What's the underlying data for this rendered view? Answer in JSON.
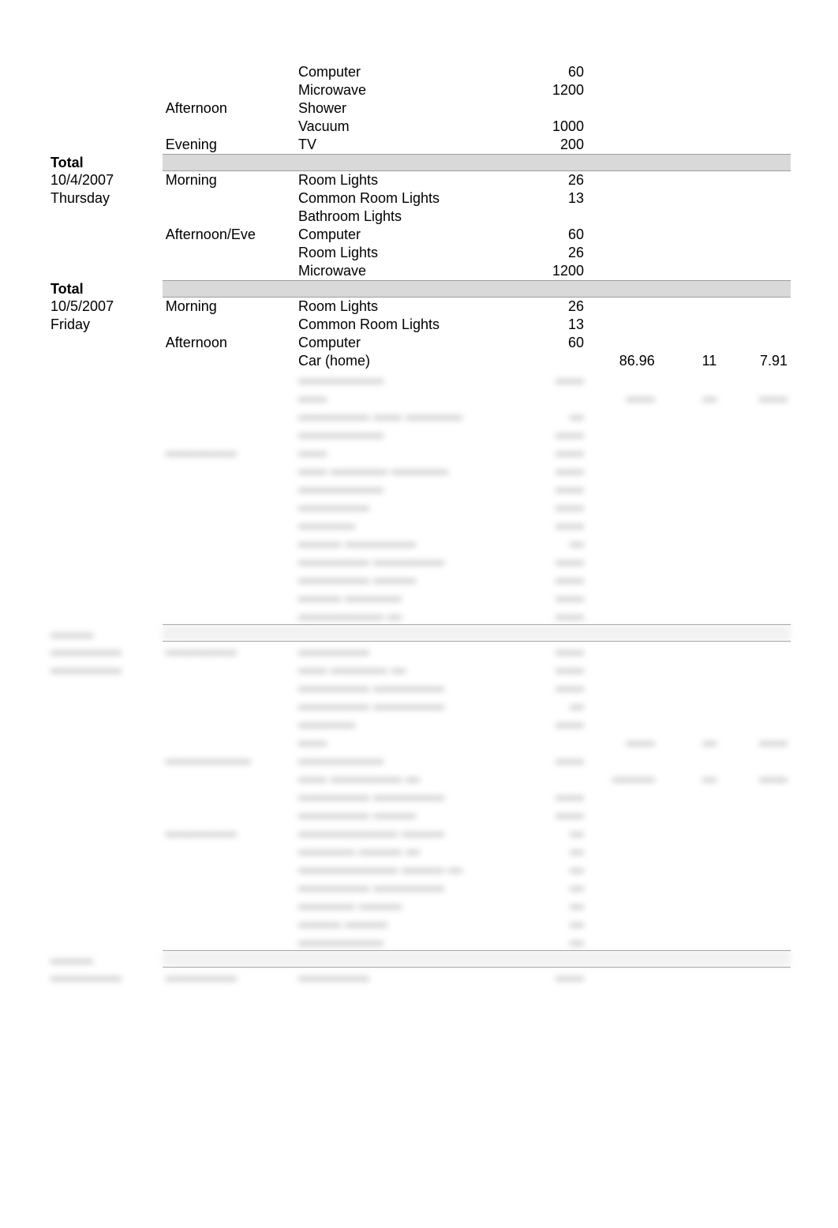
{
  "columns": [
    "date",
    "period",
    "item",
    "value",
    "colA",
    "colB",
    "colC"
  ],
  "column_align": [
    "left",
    "left",
    "left",
    "right",
    "right",
    "right",
    "right"
  ],
  "font_size_pt": 14,
  "text_color": "#000000",
  "background_color": "#ffffff",
  "separator_fill": "#d9d9d9",
  "separator_border": "#9e9e9e",
  "rows": [
    {
      "date": "",
      "period": "",
      "item": "Computer",
      "value": "60",
      "a": "",
      "b": "",
      "c": ""
    },
    {
      "date": "",
      "period": "",
      "item": "Microwave",
      "value": "1200",
      "a": "",
      "b": "",
      "c": ""
    },
    {
      "date": "",
      "period": "Afternoon",
      "item": "Shower",
      "value": "",
      "a": "",
      "b": "",
      "c": ""
    },
    {
      "date": "",
      "period": "",
      "item": "Vacuum",
      "value": "1000",
      "a": "",
      "b": "",
      "c": ""
    },
    {
      "date": "",
      "period": "Evening",
      "item": "TV",
      "value": "200",
      "a": "",
      "b": "",
      "c": ""
    },
    {
      "type": "total",
      "label": "Total"
    },
    {
      "date": "10/4/2007",
      "period": "Morning",
      "item": "Room Lights",
      "value": "26",
      "a": "",
      "b": "",
      "c": ""
    },
    {
      "date": "Thursday",
      "period": "",
      "item": "Common Room Lights",
      "value": "13",
      "a": "",
      "b": "",
      "c": ""
    },
    {
      "date": "",
      "period": "",
      "item": "Bathroom Lights",
      "value": "",
      "a": "",
      "b": "",
      "c": ""
    },
    {
      "date": "",
      "period": "Afternoon/Eve",
      "item": "Computer",
      "value": "60",
      "a": "",
      "b": "",
      "c": ""
    },
    {
      "date": "",
      "period": "",
      "item": "Room Lights",
      "value": "26",
      "a": "",
      "b": "",
      "c": ""
    },
    {
      "date": "",
      "period": "",
      "item": "Microwave",
      "value": "1200",
      "a": "",
      "b": "",
      "c": ""
    },
    {
      "type": "total",
      "label": "Total"
    },
    {
      "date": "10/5/2007",
      "period": "Morning",
      "item": "Room Lights",
      "value": "26",
      "a": "",
      "b": "",
      "c": ""
    },
    {
      "date": "Friday",
      "period": "",
      "item": "Common Room Lights",
      "value": "13",
      "a": "",
      "b": "",
      "c": ""
    },
    {
      "date": "",
      "period": "Afternoon",
      "item": "Computer",
      "value": "60",
      "a": "",
      "b": "",
      "c": ""
    },
    {
      "date": "",
      "period": "",
      "item": "Car (home)",
      "value": "",
      "a": "86.96",
      "b": "11",
      "c": "7.91"
    }
  ],
  "total_label": "Total"
}
